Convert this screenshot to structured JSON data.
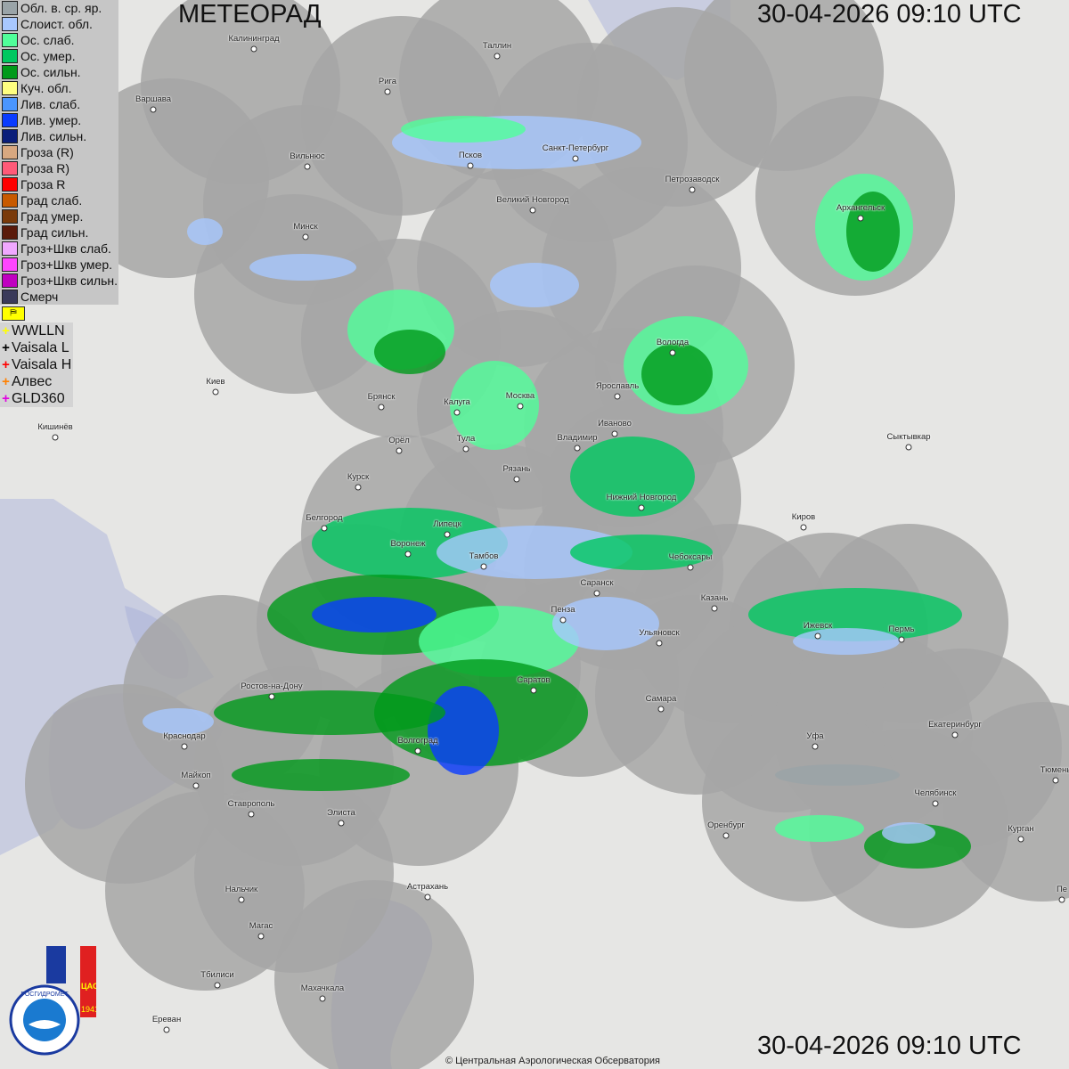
{
  "header": {
    "title": "МЕТЕОРАД",
    "timestamp_top": "30-04-2026  09:10 UTC",
    "timestamp_bottom": "30-04-2026  09:10 UTC"
  },
  "legend": [
    {
      "label": "Обл. в. ср. яр.",
      "color": "#9aa4a8"
    },
    {
      "label": "Слоист. обл.",
      "color": "#a8c8ff"
    },
    {
      "label": "Ос. слаб.",
      "color": "#50ff9a"
    },
    {
      "label": "Ос. умер.",
      "color": "#00c860"
    },
    {
      "label": "Ос. сильн.",
      "color": "#009a1a"
    },
    {
      "label": "Куч. обл.",
      "color": "#ffff80"
    },
    {
      "label": "Лив. слаб.",
      "color": "#4a96ff"
    },
    {
      "label": "Лив. умер.",
      "color": "#0a3cff"
    },
    {
      "label": "Лив. сильн.",
      "color": "#0a1e7a"
    },
    {
      "label": "Гроза (R)",
      "color": "#d8a880"
    },
    {
      "label": "Гроза R)",
      "color": "#ff5a78"
    },
    {
      "label": "Гроза R",
      "color": "#ff0000"
    },
    {
      "label": "Град слаб.",
      "color": "#c85a00"
    },
    {
      "label": "Град умер.",
      "color": "#7a3a0a"
    },
    {
      "label": "Град сильн.",
      "color": "#5a1a0a"
    },
    {
      "label": "Гроз+Шкв слаб.",
      "color": "#f0a8ff"
    },
    {
      "label": "Гроз+Шкв умер.",
      "color": "#ff46ff"
    },
    {
      "label": "Гроз+Шкв сильн.",
      "color": "#c000c0"
    },
    {
      "label": "Смерч",
      "color": "#3a3a5a"
    }
  ],
  "lightning_legend": [
    {
      "label": "WWLLN",
      "color": "#ffff00"
    },
    {
      "label": "Vaisala L",
      "color": "#000000"
    },
    {
      "label": "Vaisala H",
      "color": "#ff0000"
    },
    {
      "label": "Алвес",
      "color": "#ff8000"
    },
    {
      "label": "GLD360",
      "color": "#e000e0"
    }
  ],
  "flag_icon": "flag-icon",
  "cities": [
    "Калининград",
    "Таллин",
    "Рига",
    "Варшава",
    "Вильнюс",
    "Псков",
    "Санкт-Петербург",
    "Петрозаводск",
    "Великий Новгород",
    "Архангельск",
    "Минск",
    "Вологда",
    "Ярославль",
    "Москва",
    "Калуга",
    "Брянск",
    "Киев",
    "Иваново",
    "Тула",
    "Владимир",
    "Кишинёв",
    "Орёл",
    "Сыктывкар",
    "Рязань",
    "Курск",
    "Нижний Новгород",
    "Киров",
    "Белгород",
    "Липецк",
    "Воронеж",
    "Тамбов",
    "Чебоксары",
    "Саранск",
    "Казань",
    "Пенза",
    "Ижевск",
    "Пермь",
    "Ульяновск",
    "Саратов",
    "Ростов-на-Дону",
    "Самара",
    "Краснодар",
    "Уфа",
    "Екатеринбург",
    "Волгоград",
    "Майкоп",
    "Тюмень",
    "Челябинск",
    "Ставрополь",
    "Элиста",
    "Оренбург",
    "Курган",
    "Нальчик",
    "Астрахань",
    "Пе",
    "Магас",
    "Тбилиси",
    "Махачкала",
    "Ереван"
  ],
  "logos": {
    "rosgidromet": "РОСГИДРОМЕТ ROSHYDROMET",
    "cao": "ЦАО 1941"
  },
  "copyright": "© Центральная Аэрологическая Обсерватория"
}
